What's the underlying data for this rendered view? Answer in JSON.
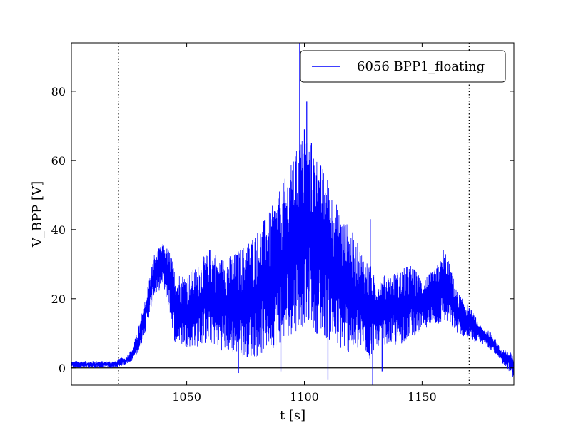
{
  "chart_data": {
    "type": "line",
    "title": "",
    "xlabel": "t [s]",
    "ylabel": "V_BPP [V]",
    "xlim": [
      1001,
      1189
    ],
    "ylim": [
      -5,
      94
    ],
    "x_ticks": [
      1050,
      1100,
      1150
    ],
    "y_ticks": [
      0,
      20,
      40,
      60,
      80
    ],
    "x_tick_labels": [
      "1050",
      "1100",
      "1150"
    ],
    "y_tick_labels": [
      "0",
      "20",
      "40",
      "60",
      "80"
    ],
    "grid": false,
    "legend": {
      "position": "top-right"
    },
    "reference_lines": {
      "horizontal_y": 0,
      "vertical_dotted_x": [
        1021,
        1170
      ]
    },
    "series": [
      {
        "name": "6056 BPP1_floating",
        "color": "#0000ff",
        "envelope": {
          "x": [
            1001,
            1020,
            1022,
            1024,
            1027,
            1030,
            1033,
            1036,
            1040,
            1043,
            1045,
            1050,
            1055,
            1060,
            1065,
            1070,
            1075,
            1080,
            1085,
            1090,
            1095,
            1100,
            1105,
            1110,
            1115,
            1120,
            1125,
            1128,
            1130,
            1135,
            1140,
            1145,
            1150,
            1155,
            1160,
            1165,
            1170,
            1175,
            1180,
            1183,
            1186,
            1189
          ],
          "upper": [
            2,
            2,
            3,
            3,
            6,
            13,
            22,
            33,
            36,
            34,
            28,
            27,
            30,
            35,
            32,
            33,
            36,
            40,
            45,
            52,
            60,
            70,
            62,
            55,
            45,
            40,
            33,
            30,
            26,
            27,
            28,
            30,
            26,
            28,
            34,
            22,
            18,
            12,
            10,
            6,
            5,
            4
          ],
          "lower": [
            0,
            0,
            0.5,
            1,
            2,
            5,
            12,
            20,
            24,
            15,
            7,
            6,
            6,
            7,
            5,
            4,
            3,
            3,
            5,
            7,
            10,
            12,
            10,
            8,
            5,
            4,
            5,
            2,
            6,
            7,
            6,
            9,
            10,
            12,
            13,
            10,
            8,
            7,
            5,
            2,
            0,
            -3
          ]
        },
        "spikes": [
          {
            "x": 1072,
            "y": -1.5
          },
          {
            "x": 1090,
            "y": -1
          },
          {
            "x": 1095,
            "y": 57
          },
          {
            "x": 1098,
            "y": 94
          },
          {
            "x": 1100,
            "y": 69
          },
          {
            "x": 1101,
            "y": 77
          },
          {
            "x": 1103,
            "y": 65
          },
          {
            "x": 1106,
            "y": 54
          },
          {
            "x": 1110,
            "y": -3.5
          },
          {
            "x": 1128,
            "y": 43
          },
          {
            "x": 1129,
            "y": -5
          },
          {
            "x": 1133,
            "y": -1
          },
          {
            "x": 1159,
            "y": 34
          }
        ]
      }
    ]
  }
}
